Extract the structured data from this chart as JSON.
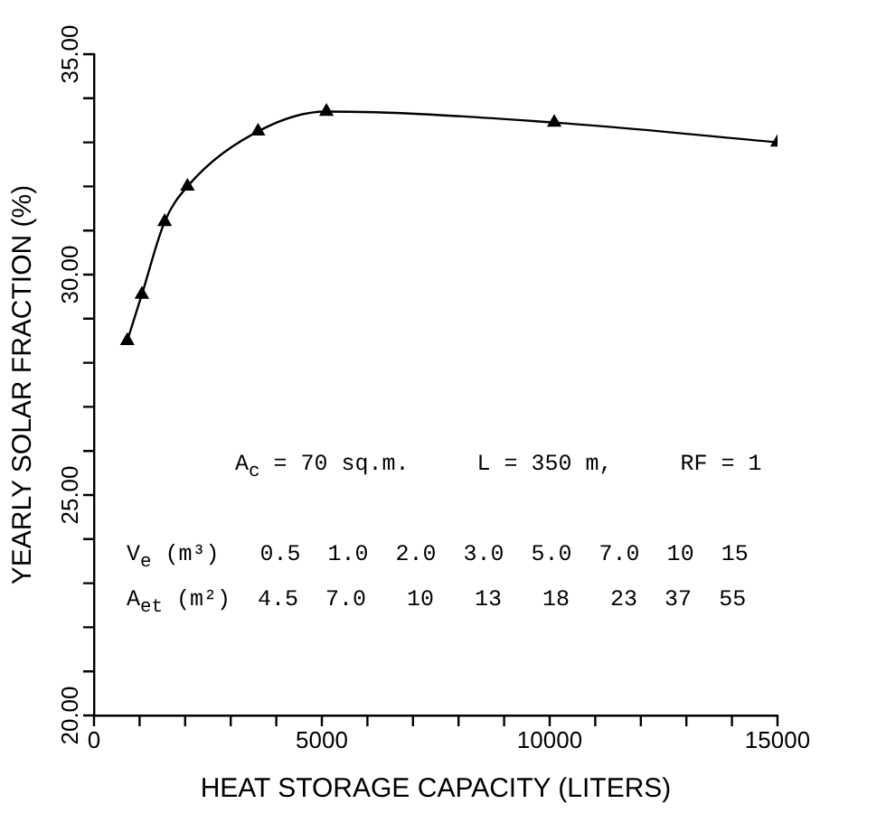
{
  "chart_data": {
    "type": "line",
    "xlabel": "HEAT STORAGE CAPACITY (LITERS)",
    "ylabel": "YEARLY SOLAR FRACTION (%)",
    "x": [
      730,
      1050,
      1550,
      2050,
      3600,
      5100,
      10100,
      15000
    ],
    "series": [
      {
        "color": "#000000",
        "values": [
          28.5,
          29.55,
          31.2,
          32.0,
          33.25,
          33.7,
          33.45,
          33.0
        ]
      }
    ],
    "marker": "triangle",
    "line_style": "solid",
    "xlim": [
      0,
      15000
    ],
    "ylim": [
      20,
      35
    ],
    "xticks": [
      0,
      {
        "value": 1000,
        "label": null
      },
      {
        "value": 2000,
        "label": null
      },
      {
        "value": 3000,
        "label": null
      },
      {
        "value": 4000,
        "label": null
      },
      5000,
      {
        "value": 6000,
        "label": null
      },
      {
        "value": 7000,
        "label": null
      },
      {
        "value": 8000,
        "label": null
      },
      {
        "value": 9000,
        "label": null
      },
      10000,
      {
        "value": 11000,
        "label": null
      },
      {
        "value": 12000,
        "label": null
      },
      {
        "value": 13000,
        "label": null
      },
      {
        "value": 14000,
        "label": null
      },
      15000
    ],
    "yticks": [
      {
        "value": 20,
        "label": "20.00"
      },
      {
        "value": 21,
        "label": null
      },
      {
        "value": 22,
        "label": null
      },
      {
        "value": 23,
        "label": null
      },
      {
        "value": 24,
        "label": null
      },
      {
        "value": 25,
        "label": "25.00"
      },
      {
        "value": 26,
        "label": null
      },
      {
        "value": 27,
        "label": null
      },
      {
        "value": 28,
        "label": null
      },
      {
        "value": 29,
        "label": null
      },
      {
        "value": 30,
        "label": "30.00"
      },
      {
        "value": 31,
        "label": null
      },
      {
        "value": 32,
        "label": null
      },
      {
        "value": 33,
        "label": null
      },
      {
        "value": 34,
        "label": null
      },
      {
        "value": 35,
        "label": "35.00"
      }
    ],
    "grid": false,
    "legend": false,
    "annotations": [
      "A$_{c}$ = 70 sq.m.     L = 350 m,     RF = 1",
      "V$_{e}$ (m³)   0.5  1.0  2.0  3.0  5.0  7.0  10  15",
      "A$_{et}$ (m²)  4.5  7.0   10   13   18   23  37  55"
    ]
  }
}
